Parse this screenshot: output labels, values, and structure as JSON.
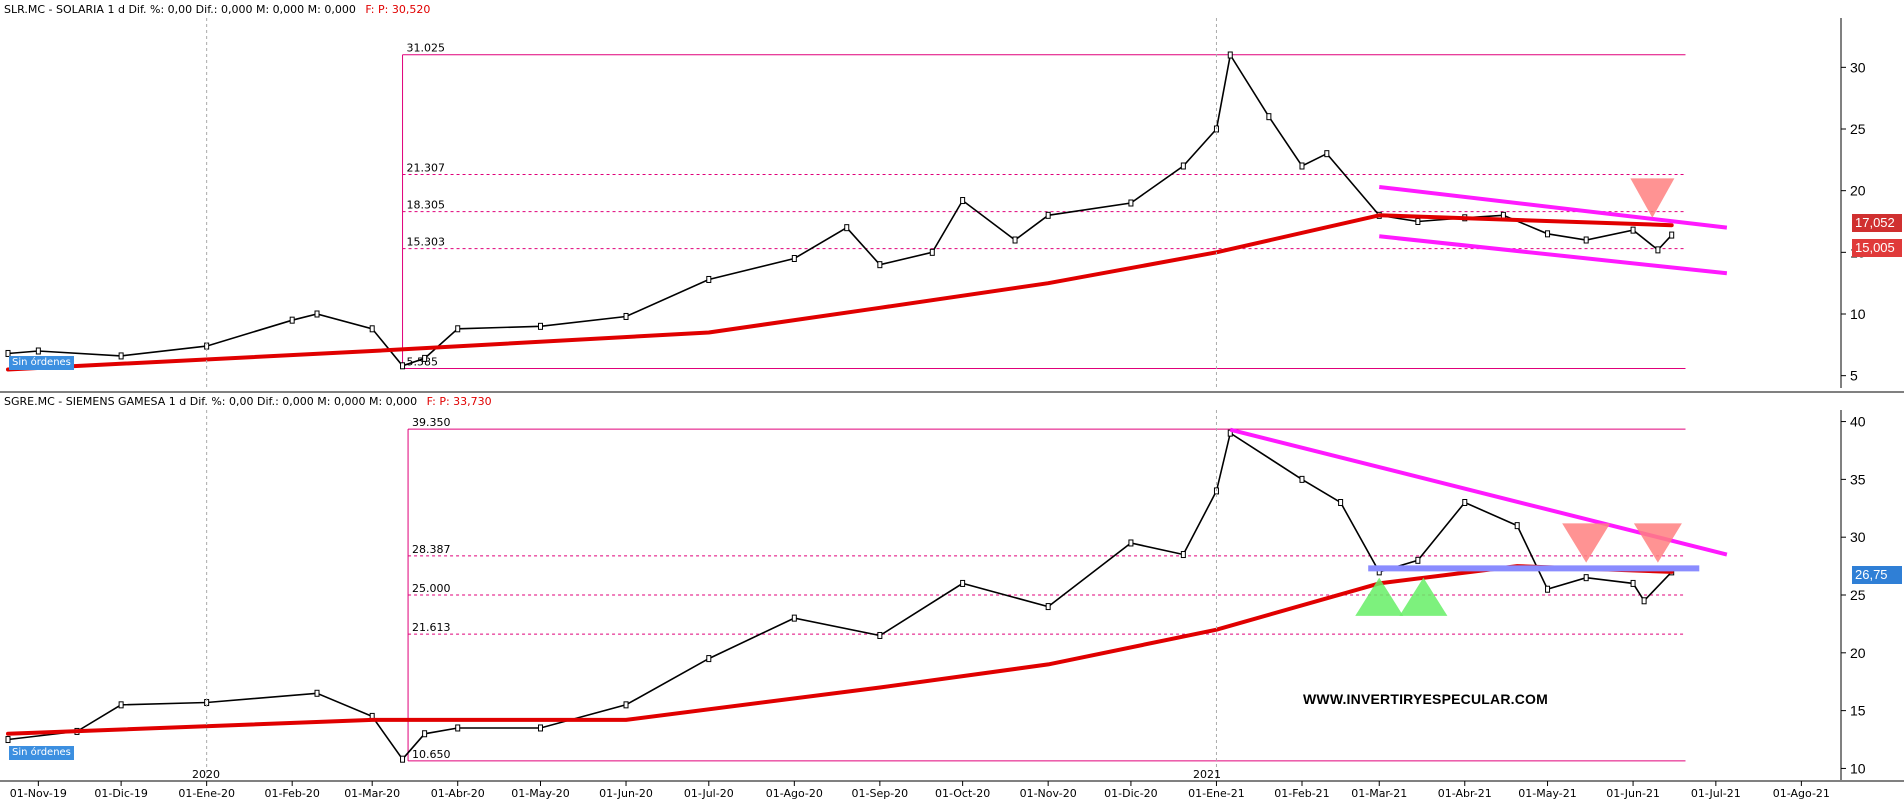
{
  "panels": {
    "top": {
      "symbol": "SLR.MC - SOLARIA",
      "interval": "1 d",
      "stats": "Dif. %: 0,00  Dif.: 0,000  M: 0,000  M: 0,000",
      "price_label": "F:  P: 30,520",
      "orders": "Sin órdenes",
      "tags": [
        "17,052",
        "15,005"
      ],
      "colors": {
        "price": "#000000",
        "ma": "#e00000",
        "channel": "#ff1aff",
        "fib": "#e0004a",
        "triangle_down": "#ff7a7a"
      }
    },
    "bottom": {
      "symbol": "SGRE.MC - SIEMENS GAMESA",
      "interval": "1 d",
      "stats": "Dif. %: 0,00  Dif.: 0,000  M: 0,000  M: 0,000",
      "price_label": "F:  P: 33,730",
      "orders": "Sin órdenes",
      "tags": [
        "26,75"
      ],
      "colors": {
        "price": "#000000",
        "ma": "#e00000",
        "trend": "#ff1aff",
        "support": "#8888ff",
        "triangle_up": "#66ee66",
        "triangle_down": "#ff7a7a"
      }
    }
  },
  "watermark": "WWW.INVERTIRYESPECULAR.COM",
  "year_labels": [
    "2020",
    "2021"
  ],
  "chart_data": [
    {
      "type": "line",
      "name": "SLR.MC - SOLARIA",
      "x": [
        "2019-10-21",
        "2019-11-01",
        "2019-12-01",
        "2020-01-01",
        "2020-02-01",
        "2020-02-10",
        "2020-03-01",
        "2020-03-12",
        "2020-03-20",
        "2020-04-01",
        "2020-05-01",
        "2020-06-01",
        "2020-07-01",
        "2020-08-01",
        "2020-08-20",
        "2020-09-01",
        "2020-09-20",
        "2020-10-01",
        "2020-10-20",
        "2020-11-01",
        "2020-12-01",
        "2020-12-20",
        "2021-01-01",
        "2021-01-06",
        "2021-01-20",
        "2021-02-01",
        "2021-02-10",
        "2021-03-01",
        "2021-03-15",
        "2021-04-01",
        "2021-04-15",
        "2021-05-01",
        "2021-05-15",
        "2021-06-01",
        "2021-06-10",
        "2021-06-15"
      ],
      "values": [
        6.8,
        7.0,
        6.6,
        7.4,
        9.5,
        10.0,
        8.8,
        5.8,
        6.4,
        8.8,
        9.0,
        9.8,
        12.8,
        14.5,
        17.0,
        14.0,
        15.0,
        19.2,
        16.0,
        18.0,
        19.0,
        22.0,
        25.0,
        31.0,
        26.0,
        22.0,
        23.0,
        18.0,
        17.5,
        17.8,
        18.0,
        16.5,
        16.0,
        16.8,
        15.2,
        16.4
      ],
      "ma200": [
        {
          "x": "2019-10-21",
          "y": 5.5
        },
        {
          "x": "2020-03-01",
          "y": 7.0
        },
        {
          "x": "2020-07-01",
          "y": 8.5
        },
        {
          "x": "2020-09-01",
          "y": 10.5
        },
        {
          "x": "2020-11-01",
          "y": 12.5
        },
        {
          "x": "2021-01-01",
          "y": 15.0
        },
        {
          "x": "2021-03-01",
          "y": 18.0
        },
        {
          "x": "2021-06-15",
          "y": 17.2
        }
      ],
      "fib_levels": [
        31.025,
        21.307,
        18.305,
        15.303,
        5.585
      ],
      "channel": {
        "upper": [
          {
            "x": "2021-03-01",
            "y": 20.3
          },
          {
            "x": "2021-07-05",
            "y": 17.0
          }
        ],
        "lower": [
          {
            "x": "2021-03-01",
            "y": 16.3
          },
          {
            "x": "2021-07-05",
            "y": 13.3
          }
        ]
      },
      "ylim": [
        4,
        34
      ],
      "yticks": [
        5,
        10,
        15,
        20,
        25,
        30
      ]
    },
    {
      "type": "line",
      "name": "SGRE.MC - SIEMENS GAMESA",
      "x": [
        "2019-10-21",
        "2019-11-15",
        "2019-12-01",
        "2020-01-01",
        "2020-02-10",
        "2020-03-01",
        "2020-03-12",
        "2020-03-20",
        "2020-04-01",
        "2020-05-01",
        "2020-06-01",
        "2020-07-01",
        "2020-08-01",
        "2020-09-01",
        "2020-10-01",
        "2020-11-01",
        "2020-12-01",
        "2020-12-20",
        "2021-01-01",
        "2021-01-06",
        "2021-02-01",
        "2021-02-15",
        "2021-03-01",
        "2021-03-15",
        "2021-04-01",
        "2021-04-20",
        "2021-05-01",
        "2021-05-15",
        "2021-06-01",
        "2021-06-05",
        "2021-06-15"
      ],
      "values": [
        12.5,
        13.2,
        15.5,
        15.7,
        16.5,
        14.5,
        10.8,
        13.0,
        13.5,
        13.5,
        15.5,
        19.5,
        23.0,
        21.5,
        26.0,
        24.0,
        29.5,
        28.5,
        34.0,
        39.0,
        35.0,
        33.0,
        27.0,
        28.0,
        33.0,
        31.0,
        25.5,
        26.5,
        26.0,
        24.5,
        27.0
      ],
      "ma200": [
        {
          "x": "2019-10-21",
          "y": 13.0
        },
        {
          "x": "2020-03-01",
          "y": 14.2
        },
        {
          "x": "2020-06-01",
          "y": 14.2
        },
        {
          "x": "2020-09-01",
          "y": 17.0
        },
        {
          "x": "2020-11-01",
          "y": 19.0
        },
        {
          "x": "2021-01-01",
          "y": 22.0
        },
        {
          "x": "2021-03-01",
          "y": 26.0
        },
        {
          "x": "2021-04-20",
          "y": 27.5
        },
        {
          "x": "2021-06-15",
          "y": 27.0
        }
      ],
      "fib_levels": [
        39.35,
        28.387,
        25.0,
        21.613,
        10.65
      ],
      "trendline": [
        {
          "x": "2021-01-06",
          "y": 39.3
        },
        {
          "x": "2021-07-05",
          "y": 28.5
        }
      ],
      "support": 27.3,
      "ylim": [
        9,
        41
      ],
      "yticks": [
        10,
        15,
        20,
        25,
        30,
        35,
        40
      ]
    }
  ],
  "x_axis": {
    "start": "2019-10-21",
    "end": "2021-08-15",
    "ticks": [
      {
        "date": "2019-11-01",
        "label": "01-Nov-19"
      },
      {
        "date": "2019-12-01",
        "label": "01-Dic-19"
      },
      {
        "date": "2020-01-01",
        "label": "01-Ene-20"
      },
      {
        "date": "2020-02-01",
        "label": "01-Feb-20"
      },
      {
        "date": "2020-03-01",
        "label": "01-Mar-20"
      },
      {
        "date": "2020-04-01",
        "label": "01-Abr-20"
      },
      {
        "date": "2020-05-01",
        "label": "01-May-20"
      },
      {
        "date": "2020-06-01",
        "label": "01-Jun-20"
      },
      {
        "date": "2020-07-01",
        "label": "01-Jul-20"
      },
      {
        "date": "2020-08-01",
        "label": "01-Ago-20"
      },
      {
        "date": "2020-09-01",
        "label": "01-Sep-20"
      },
      {
        "date": "2020-10-01",
        "label": "01-Oct-20"
      },
      {
        "date": "2020-11-01",
        "label": "01-Nov-20"
      },
      {
        "date": "2020-12-01",
        "label": "01-Dic-20"
      },
      {
        "date": "2021-01-01",
        "label": "01-Ene-21"
      },
      {
        "date": "2021-02-01",
        "label": "01-Feb-21"
      },
      {
        "date": "2021-03-01",
        "label": "01-Mar-21"
      },
      {
        "date": "2021-04-01",
        "label": "01-Abr-21"
      },
      {
        "date": "2021-05-01",
        "label": "01-May-21"
      },
      {
        "date": "2021-06-01",
        "label": "01-Jun-21"
      },
      {
        "date": "2021-07-01",
        "label": "01-Jul-21"
      },
      {
        "date": "2021-08-01",
        "label": "01-Ago-21"
      }
    ]
  }
}
